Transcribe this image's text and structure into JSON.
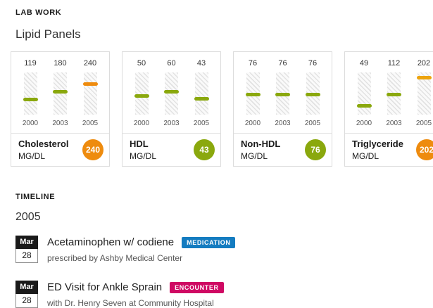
{
  "lab_work": {
    "section_title": "LAB WORK",
    "subtitle": "Lipid Panels",
    "panels": [
      {
        "name": "Cholesterol",
        "unit": "MG/DL",
        "current": 240,
        "current_color": "#ee8b0e",
        "range": [
          0,
          330
        ],
        "points": [
          {
            "year": "2000",
            "value": 119,
            "color": "#8aa80d"
          },
          {
            "year": "2003",
            "value": 180,
            "color": "#8aa80d"
          },
          {
            "year": "2005",
            "value": 240,
            "color": "#ee8b0e"
          }
        ]
      },
      {
        "name": "HDL",
        "unit": "MG/DL",
        "current": 43,
        "current_color": "#8aa80d",
        "range": [
          0,
          110
        ],
        "points": [
          {
            "year": "2000",
            "value": 50,
            "color": "#8aa80d"
          },
          {
            "year": "2003",
            "value": 60,
            "color": "#8aa80d"
          },
          {
            "year": "2005",
            "value": 43,
            "color": "#8aa80d"
          }
        ]
      },
      {
        "name": "Non-HDL",
        "unit": "MG/DL",
        "current": 76,
        "current_color": "#8aa80d",
        "range": [
          0,
          155
        ],
        "points": [
          {
            "year": "2000",
            "value": 76,
            "color": "#8aa80d"
          },
          {
            "year": "2003",
            "value": 76,
            "color": "#8aa80d"
          },
          {
            "year": "2005",
            "value": 76,
            "color": "#8aa80d"
          }
        ]
      },
      {
        "name": "Triglyceride",
        "unit": "MG/DL",
        "current": 202,
        "current_color": "#ee8b0e",
        "range": [
          0,
          230
        ],
        "points": [
          {
            "year": "2000",
            "value": 49,
            "color": "#8aa80d"
          },
          {
            "year": "2003",
            "value": 112,
            "color": "#8aa80d"
          },
          {
            "year": "2005",
            "value": 202,
            "color": "#eda40e"
          }
        ]
      }
    ]
  },
  "timeline": {
    "section_title": "TIMELINE",
    "year": "2005",
    "events": [
      {
        "month": "Mar",
        "day": "28",
        "title": "Acetaminophen w/ codiene",
        "badge": "MEDICATION",
        "badge_color": "#147cc0",
        "subtitle": "prescribed by Ashby Medical Center"
      },
      {
        "month": "Mar",
        "day": "28",
        "title": "ED Visit for Ankle Sprain",
        "badge": "ENCOUNTER",
        "badge_color": "#cf0963",
        "subtitle": "with Dr. Henry Seven at Community Hospital"
      }
    ]
  }
}
